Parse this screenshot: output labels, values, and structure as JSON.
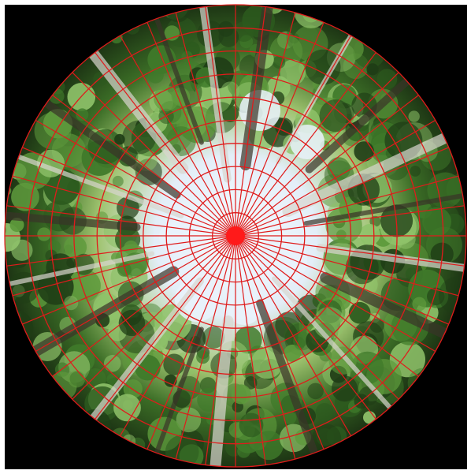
{
  "image": {
    "description_hidden": "",
    "colors": {
      "background": "#000000",
      "frame": "#ffffff",
      "sky": "#e9f2fb",
      "sky_blue": "#9cc3e6",
      "foliage_dark": "#1f3d16",
      "foliage_mid": "#3f7a2a",
      "foliage_light": "#8fc26a",
      "trunk": "#d9d6cf",
      "grid": "#e01b1b",
      "center_dot": "#ff1a1a"
    },
    "grid": {
      "rings": 10,
      "spokes": 48
    }
  }
}
